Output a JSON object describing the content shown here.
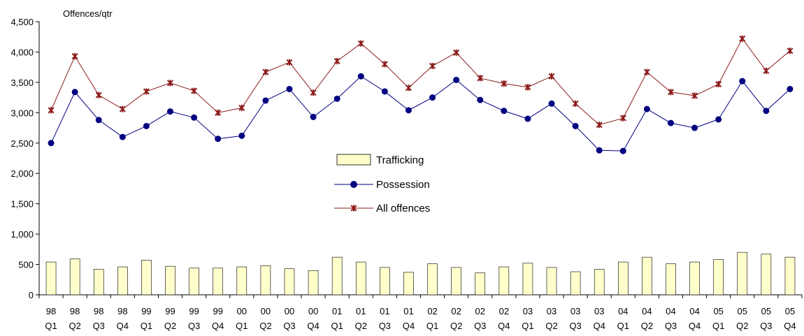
{
  "chart_data": {
    "type": "bar",
    "title": "",
    "unit_label": "Offences/qtr",
    "xlabel": "",
    "ylabel": "",
    "ylim": [
      0,
      4500
    ],
    "yticks": [
      0,
      500,
      1000,
      1500,
      2000,
      2500,
      3000,
      3500,
      4000,
      4500
    ],
    "ytick_labels": [
      "0",
      "500",
      "1,000",
      "1,500",
      "2,000",
      "2,500",
      "3,000",
      "3,500",
      "4,000",
      "4,500"
    ],
    "grid": false,
    "legend_position": "center",
    "categories": [
      {
        "year": "98",
        "q": "Q1"
      },
      {
        "year": "98",
        "q": "Q2"
      },
      {
        "year": "98",
        "q": "Q3"
      },
      {
        "year": "98",
        "q": "Q4"
      },
      {
        "year": "99",
        "q": "Q1"
      },
      {
        "year": "99",
        "q": "Q2"
      },
      {
        "year": "99",
        "q": "Q3"
      },
      {
        "year": "99",
        "q": "Q4"
      },
      {
        "year": "00",
        "q": "Q1"
      },
      {
        "year": "00",
        "q": "Q2"
      },
      {
        "year": "00",
        "q": "Q3"
      },
      {
        "year": "00",
        "q": "Q4"
      },
      {
        "year": "01",
        "q": "Q1"
      },
      {
        "year": "01",
        "q": "Q2"
      },
      {
        "year": "01",
        "q": "Q3"
      },
      {
        "year": "01",
        "q": "Q4"
      },
      {
        "year": "02",
        "q": "Q1"
      },
      {
        "year": "02",
        "q": "Q2"
      },
      {
        "year": "02",
        "q": "Q3"
      },
      {
        "year": "02",
        "q": "Q4"
      },
      {
        "year": "03",
        "q": "Q1"
      },
      {
        "year": "03",
        "q": "Q2"
      },
      {
        "year": "03",
        "q": "Q3"
      },
      {
        "year": "03",
        "q": "Q4"
      },
      {
        "year": "04",
        "q": "Q1"
      },
      {
        "year": "04",
        "q": "Q2"
      },
      {
        "year": "04",
        "q": "Q3"
      },
      {
        "year": "04",
        "q": "Q4"
      },
      {
        "year": "05",
        "q": "Q1"
      },
      {
        "year": "05",
        "q": "Q2"
      },
      {
        "year": "05",
        "q": "Q3"
      },
      {
        "year": "05",
        "q": "Q4"
      }
    ],
    "series": [
      {
        "name": "Trafficking",
        "kind": "bar",
        "color": "#ffffcc",
        "stroke": "#000000",
        "values": [
          540,
          590,
          420,
          460,
          570,
          470,
          440,
          440,
          460,
          480,
          430,
          400,
          620,
          540,
          450,
          370,
          510,
          450,
          360,
          460,
          520,
          450,
          380,
          420,
          540,
          620,
          510,
          540,
          580,
          700,
          670,
          620
        ]
      },
      {
        "name": "Possession",
        "kind": "line",
        "marker": "circle",
        "color": "#000080",
        "values": [
          2500,
          3340,
          2880,
          2600,
          2780,
          3020,
          2920,
          2570,
          2620,
          3200,
          3390,
          2930,
          3230,
          3600,
          3350,
          3040,
          3250,
          3540,
          3210,
          3030,
          2900,
          3150,
          2780,
          2380,
          2370,
          3060,
          2830,
          2750,
          2890,
          3520,
          3030,
          3390
        ]
      },
      {
        "name": "All offences",
        "kind": "line",
        "marker": "star",
        "color": "#8b1a1a",
        "values": [
          3040,
          3930,
          3290,
          3060,
          3350,
          3490,
          3360,
          3000,
          3080,
          3670,
          3830,
          3330,
          3850,
          4140,
          3800,
          3410,
          3770,
          3990,
          3570,
          3480,
          3420,
          3600,
          3150,
          2800,
          2910,
          3670,
          3340,
          3280,
          3470,
          4220,
          3690,
          4020
        ]
      }
    ]
  }
}
